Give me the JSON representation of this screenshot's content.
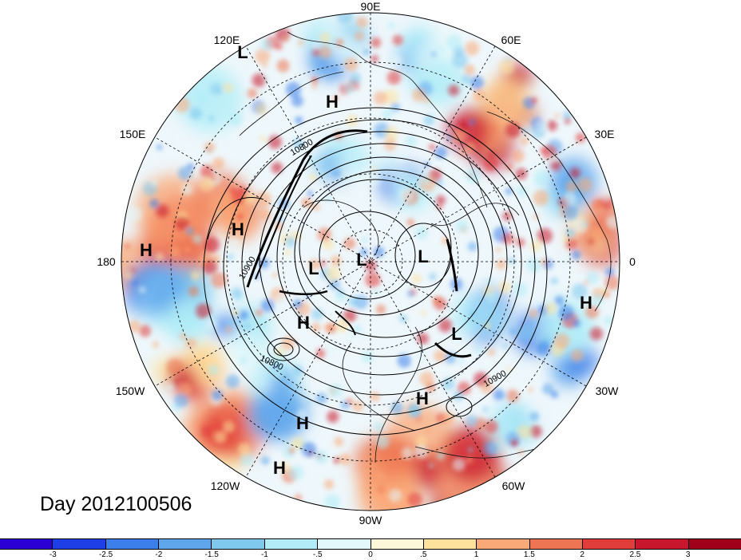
{
  "title": "Day 2012100506",
  "longitude_labels": [
    "90E",
    "60E",
    "30E",
    "0",
    "30W",
    "60W",
    "90W",
    "120W",
    "150W",
    "180",
    "150E",
    "120E"
  ],
  "pressure_centers": [
    {
      "label": "L",
      "name": "low-120e"
    },
    {
      "label": "H",
      "name": "high-siberia"
    },
    {
      "label": "H",
      "name": "high-kamchatka"
    },
    {
      "label": "H",
      "name": "high-dateline"
    },
    {
      "label": "L",
      "name": "low-bering"
    },
    {
      "label": "L",
      "name": "low-pole"
    },
    {
      "label": "L",
      "name": "low-barents"
    },
    {
      "label": "H",
      "name": "high-alaska"
    },
    {
      "label": "L",
      "name": "low-labrador"
    },
    {
      "label": "H",
      "name": "high-africa"
    },
    {
      "label": "H",
      "name": "high-atlantic"
    },
    {
      "label": "H",
      "name": "high-pacific-1"
    },
    {
      "label": "H",
      "name": "high-pacific-2"
    }
  ],
  "contour_labels": [
    "10800",
    "10900",
    "10800",
    "10900"
  ],
  "colorbar": {
    "colors": [
      "#2a00d5",
      "#1f3fe6",
      "#3d7fea",
      "#5fa6ec",
      "#7fc8ee",
      "#b1ecf7",
      "#e3f8fb",
      "#fdf7da",
      "#fde29d",
      "#f9a877",
      "#ed7553",
      "#e13d3a",
      "#c8162c",
      "#a1001b"
    ],
    "tick_labels": [
      "-3",
      "-2.5",
      "-2",
      "-1.5",
      "-1",
      "-.5",
      "0",
      ".5",
      "1",
      "1.5",
      "2",
      "2.5",
      "3"
    ]
  }
}
